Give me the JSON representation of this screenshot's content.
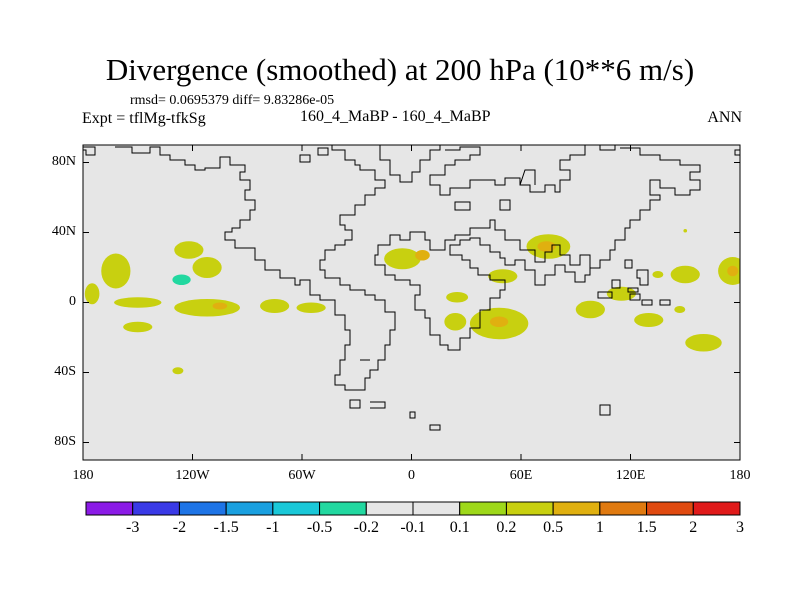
{
  "chart_data": {
    "type": "heatmap",
    "title": "Divergence (smoothed) at 200 hPa (10**6 m/s)",
    "stats_text": "rmsd= 0.0695379 diff= 9.83286e-05",
    "left_label": "Expt = tflMg-tfkSg",
    "center_label": "160_4_MaBP - 160_4_MaBP",
    "right_label": "ANN",
    "xlim": [
      -180,
      180
    ],
    "ylim": [
      -90,
      90
    ],
    "lat_ticks": [
      {
        "value": 80,
        "label": "80N"
      },
      {
        "value": 40,
        "label": "40N"
      },
      {
        "value": 0,
        "label": "0"
      },
      {
        "value": -40,
        "label": "40S"
      },
      {
        "value": -80,
        "label": "80S"
      }
    ],
    "lon_ticks": [
      {
        "value": -180,
        "label": "180"
      },
      {
        "value": -120,
        "label": "120W"
      },
      {
        "value": -60,
        "label": "60W"
      },
      {
        "value": 0,
        "label": "0"
      },
      {
        "value": 60,
        "label": "60E"
      },
      {
        "value": 120,
        "label": "120E"
      },
      {
        "value": 180,
        "label": "180"
      }
    ],
    "colorbar": {
      "labels": [
        "-3",
        "-2",
        "-1.5",
        "-1",
        "-0.5",
        "-0.2",
        "-0.1",
        "0.1",
        "0.2",
        "0.5",
        "1",
        "1.5",
        "2",
        "3"
      ],
      "colors": [
        "#8b1be6",
        "#3a3ae6",
        "#1e74e6",
        "#1aa0e0",
        "#1ac8d8",
        "#22d8a0",
        "#e6e6e6",
        "#e6e6e6",
        "#9ed81a",
        "#c8d010",
        "#e0b010",
        "#e07a10",
        "#e04a10",
        "#e01a1a"
      ]
    },
    "anomaly_regions": [
      {
        "lon": -162,
        "lat": 18,
        "rlon": 8,
        "rlat": 10,
        "value": 0.2
      },
      {
        "lon": -175,
        "lat": 5,
        "rlon": 4,
        "rlat": 6,
        "value": 0.2
      },
      {
        "lon": -128,
        "lat": 14,
        "rlon": 12,
        "rlat": 8,
        "value": -0.2
      },
      {
        "lon": -126,
        "lat": 13,
        "rlon": 5,
        "rlat": 3,
        "value": -0.5
      },
      {
        "lon": -122,
        "lat": 30,
        "rlon": 8,
        "rlat": 5,
        "value": 0.2
      },
      {
        "lon": -112,
        "lat": 20,
        "rlon": 8,
        "rlat": 6,
        "value": 0.2
      },
      {
        "lon": -98,
        "lat": 30,
        "rlon": 8,
        "rlat": 5,
        "value": -0.2
      },
      {
        "lon": -75,
        "lat": 12,
        "rlon": 7,
        "rlat": 5,
        "value": -0.2
      },
      {
        "lon": -45,
        "lat": 22,
        "rlon": 10,
        "rlat": 5,
        "value": -0.2
      },
      {
        "lon": -37,
        "lat": 35,
        "rlon": 5,
        "rlat": 3,
        "value": -0.2
      },
      {
        "lon": -150,
        "lat": 0,
        "rlon": 13,
        "rlat": 3,
        "value": 0.2
      },
      {
        "lon": -112,
        "lat": -3,
        "rlon": 18,
        "rlat": 5,
        "value": 0.2
      },
      {
        "lon": -105,
        "lat": -2,
        "rlon": 4,
        "rlat": 2,
        "value": 0.5
      },
      {
        "lon": -75,
        "lat": -2,
        "rlon": 8,
        "rlat": 4,
        "value": 0.2
      },
      {
        "lon": -55,
        "lat": -3,
        "rlon": 8,
        "rlat": 3,
        "value": 0.2
      },
      {
        "lon": -150,
        "lat": -14,
        "rlon": 8,
        "rlat": 3,
        "value": 0.2
      },
      {
        "lon": -175,
        "lat": -12,
        "rlon": 5,
        "rlat": 4,
        "value": -0.2
      },
      {
        "lon": -95,
        "lat": -14,
        "rlon": 7,
        "rlat": 3,
        "value": -0.2
      },
      {
        "lon": -68,
        "lat": -14,
        "rlon": 8,
        "rlat": 3,
        "value": -0.2
      },
      {
        "lon": -32,
        "lat": -4,
        "rlon": 5,
        "rlat": 4,
        "value": -0.2
      },
      {
        "lon": -10,
        "lat": -2,
        "rlon": 4,
        "rlat": 3,
        "value": -0.2
      },
      {
        "lon": -165,
        "lat": -26,
        "rlon": 5,
        "rlat": 3,
        "value": -0.2
      },
      {
        "lon": -42,
        "lat": -20,
        "rlon": 8,
        "rlat": 5,
        "value": -0.2
      },
      {
        "lon": -128,
        "lat": -39,
        "rlon": 3,
        "rlat": 2,
        "value": 0.2
      },
      {
        "lon": -5,
        "lat": 25,
        "rlon": 10,
        "rlat": 6,
        "value": 0.2
      },
      {
        "lon": 6,
        "lat": 27,
        "rlon": 4,
        "rlat": 3,
        "value": 0.5
      },
      {
        "lon": 48,
        "lat": 28,
        "rlon": 12,
        "rlat": 6,
        "value": -0.2
      },
      {
        "lon": 50,
        "lat": 15,
        "rlon": 8,
        "rlat": 4,
        "value": 0.2
      },
      {
        "lon": 75,
        "lat": 32,
        "rlon": 12,
        "rlat": 7,
        "value": 0.2
      },
      {
        "lon": 74,
        "lat": 32,
        "rlon": 5,
        "rlat": 3,
        "value": 0.5
      },
      {
        "lon": 25,
        "lat": 3,
        "rlon": 6,
        "rlat": 3,
        "value": 0.2
      },
      {
        "lon": 48,
        "lat": -12,
        "rlon": 16,
        "rlat": 9,
        "value": 0.2
      },
      {
        "lon": 48,
        "lat": -11,
        "rlon": 5,
        "rlat": 3,
        "value": 0.5
      },
      {
        "lon": 24,
        "lat": -11,
        "rlon": 6,
        "rlat": 5,
        "value": 0.2
      },
      {
        "lon": 74,
        "lat": 0,
        "rlon": 7,
        "rlat": 4,
        "value": -0.2
      },
      {
        "lon": 115,
        "lat": 5,
        "rlon": 8,
        "rlat": 4,
        "value": 0.2
      },
      {
        "lon": 130,
        "lat": -10,
        "rlon": 8,
        "rlat": 4,
        "value": 0.2
      },
      {
        "lon": 98,
        "lat": -4,
        "rlon": 8,
        "rlat": 5,
        "value": 0.2
      },
      {
        "lon": 150,
        "lat": 16,
        "rlon": 8,
        "rlat": 5,
        "value": 0.2
      },
      {
        "lon": 176,
        "lat": 18,
        "rlon": 8,
        "rlat": 8,
        "value": 0.2
      },
      {
        "lon": 176,
        "lat": 18,
        "rlon": 3,
        "rlat": 3,
        "value": 0.5
      },
      {
        "lon": 135,
        "lat": 16,
        "rlon": 3,
        "rlat": 2,
        "value": 0.2
      },
      {
        "lon": 167,
        "lat": 35,
        "rlon": 4,
        "rlat": 3,
        "value": -0.2
      },
      {
        "lon": 162,
        "lat": 0,
        "rlon": 6,
        "rlat": 3,
        "value": -0.2
      },
      {
        "lon": 172,
        "lat": -10,
        "rlon": 4,
        "rlat": 4,
        "value": -0.2
      },
      {
        "lon": 160,
        "lat": -23,
        "rlon": 10,
        "rlat": 5,
        "value": 0.2
      },
      {
        "lon": 147,
        "lat": -4,
        "rlon": 3,
        "rlat": 2,
        "value": 0.2
      },
      {
        "lon": 33,
        "lat": -25,
        "rlon": 7,
        "rlat": 4,
        "value": -0.2
      },
      {
        "lon": 48,
        "lat": -27,
        "rlon": 5,
        "rlat": 3,
        "value": -0.2
      },
      {
        "lon": 150,
        "lat": 41,
        "rlon": 1,
        "rlat": 1,
        "value": 0.2
      }
    ]
  }
}
